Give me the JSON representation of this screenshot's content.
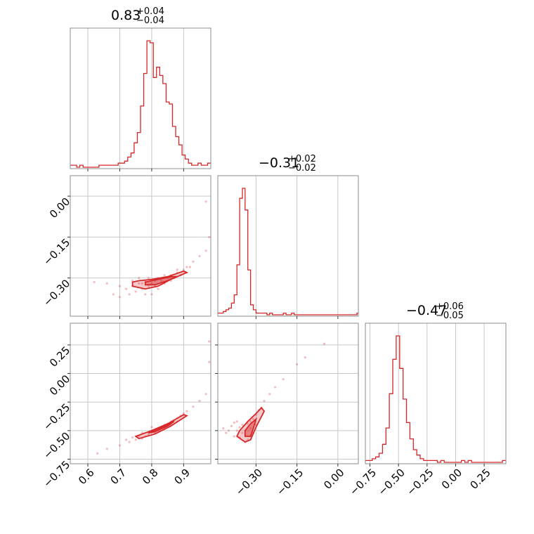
{
  "chart_data": {
    "type": "scatter",
    "layout": "corner",
    "color": "#d62728",
    "grid": true,
    "parameters": [
      {
        "median": "0.83",
        "plus": "+0.04",
        "minus": "−0.04",
        "range": [
          0.545,
          0.985
        ],
        "ticks": [
          0.6,
          0.7,
          0.8,
          0.9
        ],
        "tick_labels": [
          "0.6",
          "0.7",
          "0.8",
          "0.9"
        ],
        "hist_bin_width": 0.01,
        "hist_start": 0.545,
        "hist_counts": [
          1,
          1,
          0,
          1,
          0,
          0,
          0,
          0,
          0,
          1,
          1,
          1,
          1,
          1,
          1,
          2,
          2,
          3,
          5,
          7,
          12,
          17,
          30,
          46,
          62,
          61,
          44,
          49,
          45,
          41,
          32,
          31,
          20,
          15,
          11,
          6,
          4,
          2,
          1,
          1,
          2,
          1,
          1,
          2
        ]
      },
      {
        "median": "−0.31",
        "plus": "+0.02",
        "minus": "−0.02",
        "range": [
          -0.44,
          0.075
        ],
        "ticks": [
          -0.3,
          -0.15,
          0.0
        ],
        "tick_labels": [
          "−0.30",
          "−0.15",
          "0.00"
        ],
        "hist_bin_width": 0.01,
        "hist_start": -0.44,
        "hist_counts": [
          1,
          1,
          2,
          3,
          4,
          7,
          12,
          30,
          70,
          76,
          63,
          27,
          6,
          3,
          1,
          1,
          1,
          1,
          0,
          1,
          0,
          0,
          0,
          0,
          1,
          0,
          0,
          1,
          0,
          0,
          0,
          0,
          0,
          0,
          0,
          0,
          0,
          0,
          0,
          0,
          0,
          0,
          0,
          0,
          0,
          0,
          0,
          0,
          0,
          0,
          0,
          1
        ]
      },
      {
        "median": "−0.47",
        "plus": "+0.06",
        "minus": "−0.05",
        "range": [
          -0.79,
          0.44
        ],
        "ticks": [
          -0.75,
          -0.5,
          -0.25,
          0.0,
          0.25
        ],
        "tick_labels": [
          "−0.75",
          "−0.50",
          "−0.25",
          "0.00",
          "0.25"
        ],
        "hist_bin_width": 0.03,
        "hist_start": -0.79,
        "hist_counts": [
          1,
          1,
          2,
          3,
          5,
          10,
          19,
          38,
          57,
          70,
          52,
          35,
          22,
          13,
          7,
          4,
          2,
          1,
          1,
          1,
          1,
          0,
          1,
          0,
          0,
          0,
          0,
          0,
          1,
          0,
          1,
          0,
          0,
          0,
          0,
          0,
          0,
          0,
          0,
          0,
          1
        ]
      }
    ],
    "scatter_panels": [
      {
        "x_param": 0,
        "y_param": 1,
        "points": [
          [
            0.62,
            -0.315
          ],
          [
            0.66,
            -0.32
          ],
          [
            0.7,
            -0.33
          ],
          [
            0.72,
            -0.34
          ],
          [
            0.74,
            -0.33
          ],
          [
            0.76,
            -0.32
          ],
          [
            0.77,
            -0.34
          ],
          [
            0.78,
            -0.31
          ],
          [
            0.79,
            -0.33
          ],
          [
            0.8,
            -0.32
          ],
          [
            0.81,
            -0.31
          ],
          [
            0.82,
            -0.3
          ],
          [
            0.83,
            -0.31
          ],
          [
            0.84,
            -0.32
          ],
          [
            0.85,
            -0.3
          ],
          [
            0.86,
            -0.29
          ],
          [
            0.87,
            -0.3
          ],
          [
            0.88,
            -0.28
          ],
          [
            0.89,
            -0.29
          ],
          [
            0.9,
            -0.27
          ],
          [
            0.91,
            -0.26
          ],
          [
            0.93,
            -0.24
          ],
          [
            0.95,
            -0.22
          ],
          [
            0.97,
            -0.2
          ],
          [
            0.98,
            -0.15
          ],
          [
            0.97,
            -0.02
          ],
          [
            0.75,
            -0.35
          ],
          [
            0.78,
            -0.36
          ],
          [
            0.8,
            -0.36
          ],
          [
            0.7,
            -0.37
          ],
          [
            0.82,
            -0.34
          ],
          [
            0.79,
            -0.3
          ],
          [
            0.81,
            -0.33
          ],
          [
            0.84,
            -0.29
          ],
          [
            0.86,
            -0.31
          ],
          [
            0.77,
            -0.32
          ],
          [
            0.76,
            -0.3
          ],
          [
            0.88,
            -0.27
          ],
          [
            0.92,
            -0.26
          ],
          [
            0.74,
            -0.31
          ],
          [
            0.68,
            -0.36
          ],
          [
            0.73,
            -0.36
          ]
        ],
        "contours": [
          [
            [
              0.76,
              -0.31
            ],
            [
              0.8,
              -0.305
            ],
            [
              0.85,
              -0.295
            ],
            [
              0.9,
              -0.275
            ],
            [
              0.91,
              -0.28
            ],
            [
              0.86,
              -0.305
            ],
            [
              0.82,
              -0.33
            ],
            [
              0.78,
              -0.34
            ],
            [
              0.74,
              -0.33
            ],
            [
              0.74,
              -0.315
            ]
          ],
          [
            [
              0.78,
              -0.315
            ],
            [
              0.82,
              -0.305
            ],
            [
              0.86,
              -0.295
            ],
            [
              0.88,
              -0.295
            ],
            [
              0.85,
              -0.31
            ],
            [
              0.81,
              -0.325
            ],
            [
              0.78,
              -0.325
            ]
          ]
        ]
      },
      {
        "x_param": 0,
        "y_param": 2,
        "points": [
          [
            0.63,
            -0.7
          ],
          [
            0.66,
            -0.66
          ],
          [
            0.7,
            -0.63
          ],
          [
            0.73,
            -0.6
          ],
          [
            0.75,
            -0.58
          ],
          [
            0.77,
            -0.57
          ],
          [
            0.78,
            -0.55
          ],
          [
            0.79,
            -0.52
          ],
          [
            0.8,
            -0.5
          ],
          [
            0.81,
            -0.52
          ],
          [
            0.82,
            -0.48
          ],
          [
            0.83,
            -0.47
          ],
          [
            0.84,
            -0.45
          ],
          [
            0.85,
            -0.44
          ],
          [
            0.86,
            -0.42
          ],
          [
            0.87,
            -0.41
          ],
          [
            0.88,
            -0.39
          ],
          [
            0.89,
            -0.37
          ],
          [
            0.9,
            -0.35
          ],
          [
            0.91,
            -0.33
          ],
          [
            0.93,
            -0.29
          ],
          [
            0.95,
            -0.24
          ],
          [
            0.97,
            -0.18
          ],
          [
            0.98,
            0.1
          ],
          [
            0.98,
            0.28
          ],
          [
            0.76,
            -0.55
          ],
          [
            0.74,
            -0.56
          ],
          [
            0.79,
            -0.54
          ],
          [
            0.82,
            -0.5
          ],
          [
            0.84,
            -0.48
          ],
          [
            0.86,
            -0.45
          ],
          [
            0.77,
            -0.52
          ],
          [
            0.8,
            -0.47
          ],
          [
            0.88,
            -0.42
          ],
          [
            0.72,
            -0.58
          ]
        ],
        "contours": [
          [
            [
              0.75,
              -0.55
            ],
            [
              0.8,
              -0.5
            ],
            [
              0.85,
              -0.44
            ],
            [
              0.9,
              -0.36
            ],
            [
              0.91,
              -0.37
            ],
            [
              0.86,
              -0.46
            ],
            [
              0.81,
              -0.53
            ],
            [
              0.76,
              -0.57
            ]
          ],
          [
            [
              0.79,
              -0.52
            ],
            [
              0.84,
              -0.46
            ],
            [
              0.87,
              -0.42
            ],
            [
              0.85,
              -0.46
            ],
            [
              0.81,
              -0.51
            ]
          ]
        ]
      },
      {
        "x_param": 1,
        "y_param": 2,
        "points": [
          [
            -0.42,
            -0.48
          ],
          [
            -0.41,
            -0.52
          ],
          [
            -0.4,
            -0.5
          ],
          [
            -0.39,
            -0.46
          ],
          [
            -0.38,
            -0.55
          ],
          [
            -0.37,
            -0.5
          ],
          [
            -0.36,
            -0.47
          ],
          [
            -0.35,
            -0.52
          ],
          [
            -0.34,
            -0.6
          ],
          [
            -0.33,
            -0.44
          ],
          [
            -0.32,
            -0.48
          ],
          [
            -0.31,
            -0.4
          ],
          [
            -0.3,
            -0.36
          ],
          [
            -0.29,
            -0.32
          ],
          [
            -0.28,
            -0.3
          ],
          [
            -0.27,
            -0.24
          ],
          [
            -0.25,
            -0.18
          ],
          [
            -0.23,
            -0.12
          ],
          [
            -0.2,
            -0.05
          ],
          [
            -0.15,
            0.08
          ],
          [
            -0.12,
            0.14
          ],
          [
            -0.05,
            0.26
          ],
          [
            -0.36,
            -0.56
          ],
          [
            -0.35,
            -0.45
          ],
          [
            -0.33,
            -0.58
          ],
          [
            -0.32,
            -0.42
          ],
          [
            -0.31,
            -0.52
          ],
          [
            -0.3,
            -0.45
          ],
          [
            -0.37,
            -0.42
          ],
          [
            -0.38,
            -0.43
          ]
        ],
        "contours": [
          [
            [
              -0.36,
              -0.5
            ],
            [
              -0.33,
              -0.42
            ],
            [
              -0.3,
              -0.35
            ],
            [
              -0.28,
              -0.3
            ],
            [
              -0.27,
              -0.33
            ],
            [
              -0.3,
              -0.47
            ],
            [
              -0.32,
              -0.58
            ],
            [
              -0.34,
              -0.6
            ],
            [
              -0.37,
              -0.55
            ]
          ],
          [
            [
              -0.34,
              -0.5
            ],
            [
              -0.32,
              -0.44
            ],
            [
              -0.3,
              -0.4
            ],
            [
              -0.31,
              -0.48
            ],
            [
              -0.32,
              -0.55
            ],
            [
              -0.34,
              -0.55
            ]
          ]
        ]
      }
    ]
  }
}
